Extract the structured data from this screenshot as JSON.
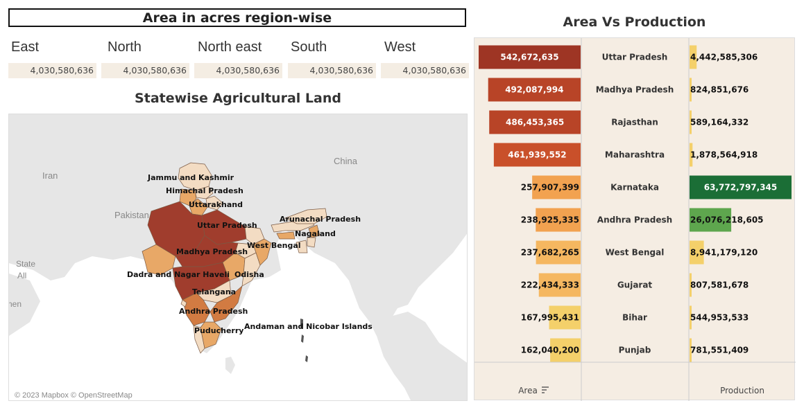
{
  "regions": {
    "title": "Area in acres region-wise",
    "items": [
      {
        "name": "East",
        "value": "4,030,580,636"
      },
      {
        "name": "North",
        "value": "4,030,580,636"
      },
      {
        "name": "North east",
        "value": "4,030,580,636"
      },
      {
        "name": "South",
        "value": "4,030,580,636"
      },
      {
        "name": "West",
        "value": "4,030,580,636"
      }
    ]
  },
  "map": {
    "title": "Statewise Agricultural Land",
    "countries": [
      "Iran",
      "Pakistan",
      "China"
    ],
    "legend_label": "State",
    "legend_value": "All",
    "edge_label": "nen",
    "attribution": "© 2023 Mapbox © OpenStreetMap",
    "state_labels": [
      "Jammu and Kashmir",
      "Himachal Pradesh",
      "Uttarakhand",
      "Uttar Pradesh",
      "Arunachal Pradesh",
      "Nagaland",
      "West Bengal",
      "Madhya Pradesh",
      "Dadra and Nagar Haveli",
      "Odisha",
      "Telangana",
      "Andhra Pradesh",
      "Puducherry",
      "Andaman and Nicobar Islands"
    ]
  },
  "chart_data": {
    "type": "bar",
    "title": "Area Vs Production",
    "categories": [
      "Uttar Pradesh",
      "Madhya Pradesh",
      "Rajasthan",
      "Maharashtra",
      "Karnataka",
      "Andhra Pradesh",
      "West Bengal",
      "Gujarat",
      "Bihar",
      "Punjab"
    ],
    "series": [
      {
        "name": "Area",
        "values": [
          542672635,
          492087994,
          486453365,
          461939552,
          257907399,
          238925335,
          237682265,
          222434333,
          167995431,
          162040200
        ],
        "labels": [
          "542,672,635",
          "492,087,994",
          "486,453,365",
          "461,939,552",
          "257,907,399",
          "238,925,335",
          "237,682,265",
          "222,434,333",
          "167,995,431",
          "162,040,200"
        ]
      },
      {
        "name": "Production",
        "values": [
          4442585306,
          824851676,
          589164332,
          1878564918,
          63772797345,
          26076218605,
          8941179120,
          807581678,
          544953533,
          781551409
        ],
        "labels": [
          "4,442,585,306",
          "824,851,676",
          "589,164,332",
          "1,878,564,918",
          "63,772,797,345",
          "26,076,218,605",
          "8,941,179,120",
          "807,581,678",
          "544,953,533",
          "781,551,409"
        ]
      }
    ],
    "area_colors": [
      "#9e3524",
      "#b84427",
      "#b84427",
      "#c9502a",
      "#f2a250",
      "#f2a250",
      "#f5b760",
      "#f5b760",
      "#f4d06a",
      "#f4d06a"
    ],
    "production_colors": [
      "#f4d06a",
      "#f4d06a",
      "#f4d06a",
      "#f4d06a",
      "#1b6e36",
      "#5ea64e",
      "#f4d06a",
      "#f4d06a",
      "#f4d06a",
      "#f4d06a"
    ],
    "area_sort_icon": "sort-descending-icon"
  }
}
